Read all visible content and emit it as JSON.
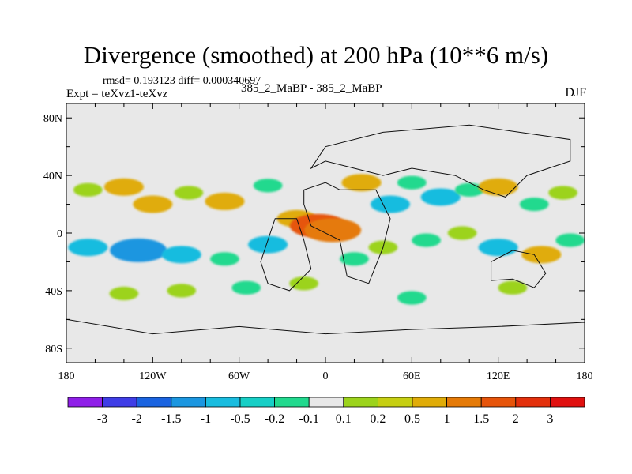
{
  "chart_data": {
    "type": "heatmap",
    "title": "Divergence (smoothed) at 200 hPa (10**6 m/s)",
    "subtitle_left": "rmsd= 0.193123  diff= 0.000340697",
    "subtitle_left2": "Expt = teXvz1-teXvz",
    "subtitle_center": "385_2_MaBP - 385_2_MaBP",
    "subtitle_right": "DJF",
    "x_ticks": [
      {
        "value": -180,
        "label": "180"
      },
      {
        "value": -120,
        "label": "120W"
      },
      {
        "value": -60,
        "label": "60W"
      },
      {
        "value": 0,
        "label": "0"
      },
      {
        "value": 60,
        "label": "60E"
      },
      {
        "value": 120,
        "label": "120E"
      },
      {
        "value": 180,
        "label": "180"
      }
    ],
    "y_ticks": [
      {
        "value": 80,
        "label": "80N"
      },
      {
        "value": 40,
        "label": "40N"
      },
      {
        "value": 0,
        "label": "0"
      },
      {
        "value": -40,
        "label": "40S"
      },
      {
        "value": -80,
        "label": "80S"
      }
    ],
    "xlim": [
      -180,
      180
    ],
    "ylim": [
      -90,
      90
    ],
    "colorbar": {
      "labels": [
        "-3",
        "-2",
        "-1.5",
        "-1",
        "-0.5",
        "-0.2",
        "-0.1",
        "0.1",
        "0.2",
        "0.5",
        "1",
        "1.5",
        "2",
        "3"
      ],
      "colors": [
        "#8f1fe8",
        "#3f3de6",
        "#1a63e0",
        "#1b96e0",
        "#19bcdf",
        "#17cfc6",
        "#22d98e",
        "#e8e8e8",
        "#9cd31c",
        "#c6cf12",
        "#e0ac08",
        "#e57a07",
        "#e6540a",
        "#e3300c",
        "#e0100f"
      ]
    },
    "blobs": [
      {
        "lon": -165,
        "lat": 30,
        "level": 0.2
      },
      {
        "lon": -140,
        "lat": 32,
        "level": 0.5
      },
      {
        "lon": -120,
        "lat": 20,
        "level": 0.5
      },
      {
        "lon": -95,
        "lat": 28,
        "level": 0.2
      },
      {
        "lon": -70,
        "lat": 22,
        "level": 0.5
      },
      {
        "lon": -40,
        "lat": 33,
        "level": -0.2
      },
      {
        "lon": -20,
        "lat": 10,
        "level": 0.5
      },
      {
        "lon": -5,
        "lat": 5,
        "level": 1.5
      },
      {
        "lon": 5,
        "lat": 2,
        "level": 1
      },
      {
        "lon": 25,
        "lat": 35,
        "level": 0.5
      },
      {
        "lon": 45,
        "lat": 20,
        "level": -0.5
      },
      {
        "lon": 60,
        "lat": 35,
        "level": -0.2
      },
      {
        "lon": 80,
        "lat": 25,
        "level": -0.5
      },
      {
        "lon": 100,
        "lat": 30,
        "level": -0.2
      },
      {
        "lon": 120,
        "lat": 32,
        "level": 0.5
      },
      {
        "lon": 145,
        "lat": 20,
        "level": -0.2
      },
      {
        "lon": 165,
        "lat": 28,
        "level": 0.2
      },
      {
        "lon": -165,
        "lat": -10,
        "level": -0.5
      },
      {
        "lon": -130,
        "lat": -12,
        "level": -1
      },
      {
        "lon": -100,
        "lat": -15,
        "level": -0.5
      },
      {
        "lon": -70,
        "lat": -18,
        "level": -0.2
      },
      {
        "lon": -40,
        "lat": -8,
        "level": -0.5
      },
      {
        "lon": -15,
        "lat": -35,
        "level": 0.2
      },
      {
        "lon": 20,
        "lat": -18,
        "level": -0.2
      },
      {
        "lon": 40,
        "lat": -10,
        "level": 0.2
      },
      {
        "lon": 70,
        "lat": -5,
        "level": -0.2
      },
      {
        "lon": 95,
        "lat": 0,
        "level": 0.2
      },
      {
        "lon": 120,
        "lat": -10,
        "level": -0.5
      },
      {
        "lon": 150,
        "lat": -15,
        "level": 0.5
      },
      {
        "lon": 170,
        "lat": -5,
        "level": -0.2
      },
      {
        "lon": -140,
        "lat": -42,
        "level": 0.2
      },
      {
        "lon": -100,
        "lat": -40,
        "level": 0.2
      },
      {
        "lon": -55,
        "lat": -38,
        "level": -0.2
      },
      {
        "lon": 60,
        "lat": -45,
        "level": -0.2
      },
      {
        "lon": 130,
        "lat": -38,
        "level": 0.2
      }
    ]
  }
}
